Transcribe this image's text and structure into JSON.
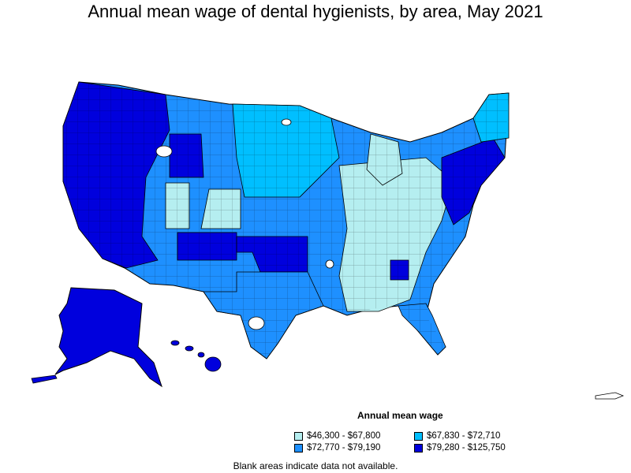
{
  "title": "Annual mean wage of dental hygienists, by area, May 2021",
  "legend": {
    "title": "Annual mean wage",
    "items": [
      {
        "label": "$46,300 - $67,800",
        "color": "#b5eef0"
      },
      {
        "label": "$67,830 - $72,710",
        "color": "#00bfff"
      },
      {
        "label": "$72,770 - $79,190",
        "color": "#1e90ff"
      },
      {
        "label": "$79,280 - $125,750",
        "color": "#0000dd"
      }
    ]
  },
  "note": "Blank areas indicate data not available.",
  "colors": {
    "border": "#000000",
    "blank": "#ffffff"
  }
}
